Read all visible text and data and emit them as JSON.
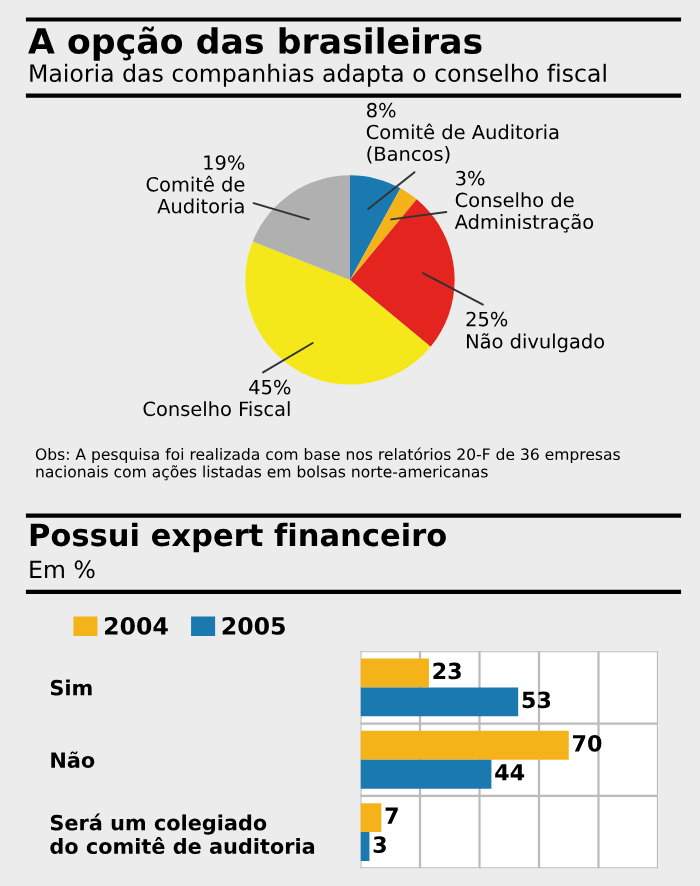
{
  "chart_data": [
    {
      "type": "pie",
      "title": "A opção das brasileiras",
      "subtitle": "Maioria das companhias adapta o conselho fiscal",
      "categories": [
        "Comitê de Auditoria\n(Bancos)",
        "Conselho de\nAdministração",
        "Não divulgado",
        "Conselho Fiscal",
        "Comitê de\nAuditoria"
      ],
      "values": [
        8,
        3,
        25,
        45,
        19
      ],
      "value_labels": [
        "8%",
        "3%",
        "25%",
        "45%",
        "19%"
      ],
      "colors": [
        "#1a7ab0",
        "#f5b31a",
        "#e3241f",
        "#f5e81a",
        "#b0b0b0"
      ],
      "annotations": [
        "Obs: A pesquisa foi realizada com base nos relatórios 20-F de 36 empresas nacionais com ações listadas em bolsas norte-americanas"
      ]
    },
    {
      "type": "bar",
      "orientation": "horizontal",
      "title": "Possui expert financeiro",
      "subtitle": "Em %",
      "categories": [
        "Sim",
        "Não",
        "Será um colegiado\ndo comitê de auditoria"
      ],
      "series": [
        {
          "name": "2004",
          "color": "#f5b31a",
          "values": [
            23,
            70,
            7
          ]
        },
        {
          "name": "2005",
          "color": "#1a7ab0",
          "values": [
            53,
            44,
            3
          ]
        }
      ],
      "xlim": [
        0,
        100
      ],
      "xticks": [
        {
          "value": 0,
          "label": null
        },
        {
          "value": 20,
          "label": null
        },
        {
          "value": 40,
          "label": null
        },
        {
          "value": 60,
          "label": null
        },
        {
          "value": 80,
          "label": null
        },
        {
          "value": 100,
          "label": null
        }
      ],
      "grid": "x",
      "tick_labels": "y",
      "legend": "top left",
      "data_labels": true
    }
  ]
}
